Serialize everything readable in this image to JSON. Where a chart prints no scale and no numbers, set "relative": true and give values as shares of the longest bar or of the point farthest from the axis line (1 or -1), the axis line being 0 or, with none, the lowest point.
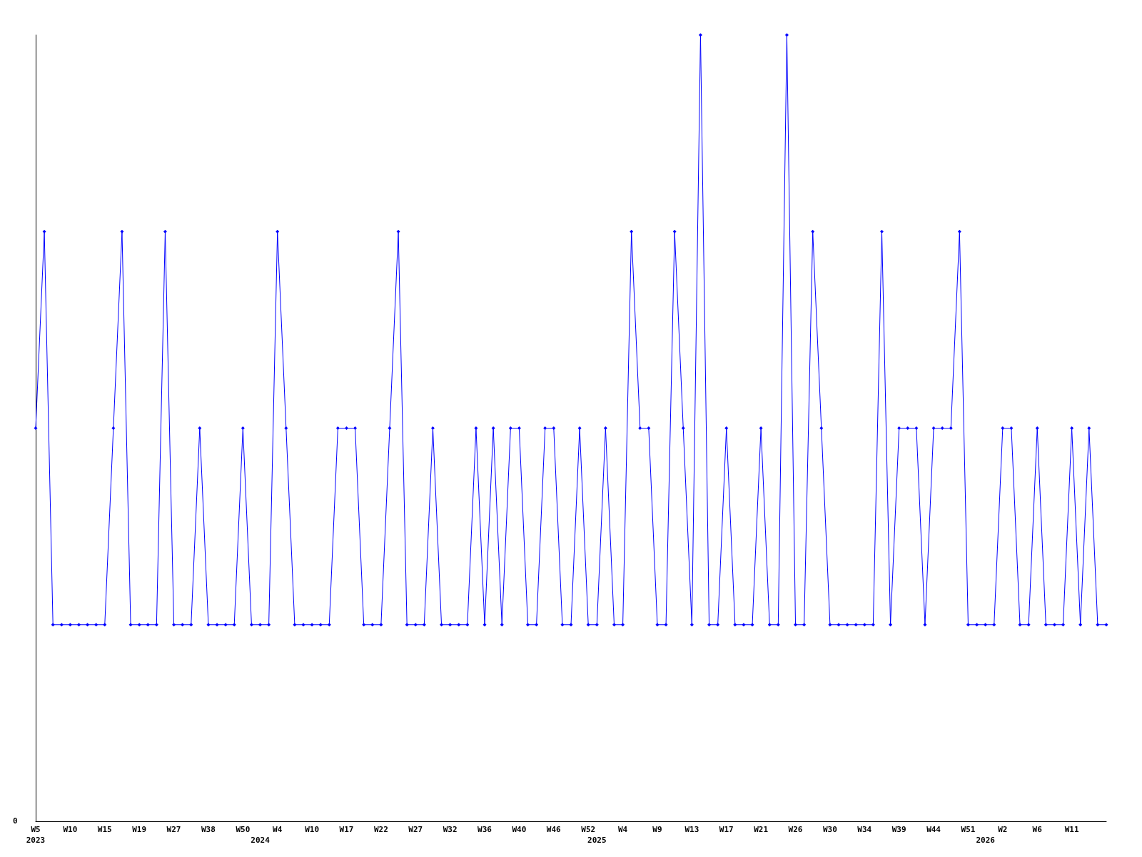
{
  "chart_data": {
    "type": "line",
    "relative": true,
    "annotations": [
      "0"
    ],
    "categories": [
      "W5\n2023",
      null,
      null,
      null,
      "W10",
      null,
      null,
      null,
      "W15",
      null,
      null,
      null,
      "W19",
      null,
      null,
      null,
      "W27",
      null,
      null,
      null,
      "W38",
      null,
      null,
      null,
      "W50",
      null,
      "\n2024",
      null,
      "W4",
      null,
      null,
      null,
      "W10",
      null,
      null,
      null,
      "W17",
      null,
      null,
      null,
      "W22",
      null,
      null,
      null,
      "W27",
      null,
      null,
      null,
      "W32",
      null,
      null,
      null,
      "W36",
      null,
      null,
      null,
      "W40",
      null,
      null,
      null,
      "W46",
      null,
      null,
      null,
      "W52",
      "\n2025",
      null,
      null,
      "W4",
      null,
      null,
      null,
      "W9",
      null,
      null,
      null,
      "W13",
      null,
      null,
      null,
      "W17",
      null,
      null,
      null,
      "W21",
      null,
      null,
      null,
      "W26",
      null,
      null,
      null,
      "W30",
      null,
      null,
      null,
      "W34",
      null,
      null,
      null,
      "W39",
      null,
      null,
      null,
      "W44",
      null,
      null,
      null,
      "W51",
      null,
      "\n2026",
      null,
      "W2",
      null,
      null,
      null,
      "W6",
      null,
      null,
      null,
      "W11",
      null,
      null,
      null,
      null
    ],
    "series": [
      {
        "color": "#0000ff",
        "values": [
          0.5,
          0.75,
          0.25,
          0.25,
          0.25,
          0.25,
          0.25,
          0.25,
          0.25,
          0.5,
          0.75,
          0.25,
          0.25,
          0.25,
          0.25,
          0.75,
          0.25,
          0.25,
          0.25,
          0.5,
          0.25,
          0.25,
          0.25,
          0.25,
          0.5,
          0.25,
          0.25,
          0.25,
          0.75,
          0.5,
          0.25,
          0.25,
          0.25,
          0.25,
          0.25,
          0.5,
          0.5,
          0.5,
          0.25,
          0.25,
          0.25,
          0.5,
          0.75,
          0.25,
          0.25,
          0.25,
          0.5,
          0.25,
          0.25,
          0.25,
          0.25,
          0.5,
          0.25,
          0.5,
          0.25,
          0.5,
          0.5,
          0.25,
          0.25,
          0.5,
          0.5,
          0.25,
          0.25,
          0.5,
          0.25,
          0.25,
          0.5,
          0.25,
          0.25,
          0.75,
          0.5,
          0.5,
          0.25,
          0.25,
          0.75,
          0.5,
          0.25,
          1,
          0.25,
          0.25,
          0.5,
          0.25,
          0.25,
          0.25,
          0.5,
          0.25,
          0.25,
          1,
          0.25,
          0.25,
          0.75,
          0.5,
          0.25,
          0.25,
          0.25,
          0.25,
          0.25,
          0.25,
          0.75,
          0.25,
          0.5,
          0.5,
          0.5,
          0.25,
          0.5,
          0.5,
          0.5,
          0.75,
          0.25,
          0.25,
          0.25,
          0.25,
          0.5,
          0.5,
          0.25,
          0.25,
          0.5,
          0.25,
          0.25,
          0.25,
          0.5,
          0.25,
          0.5,
          0.25,
          0.25
        ]
      }
    ],
    "marker": "diamond",
    "line_style": "solid"
  }
}
